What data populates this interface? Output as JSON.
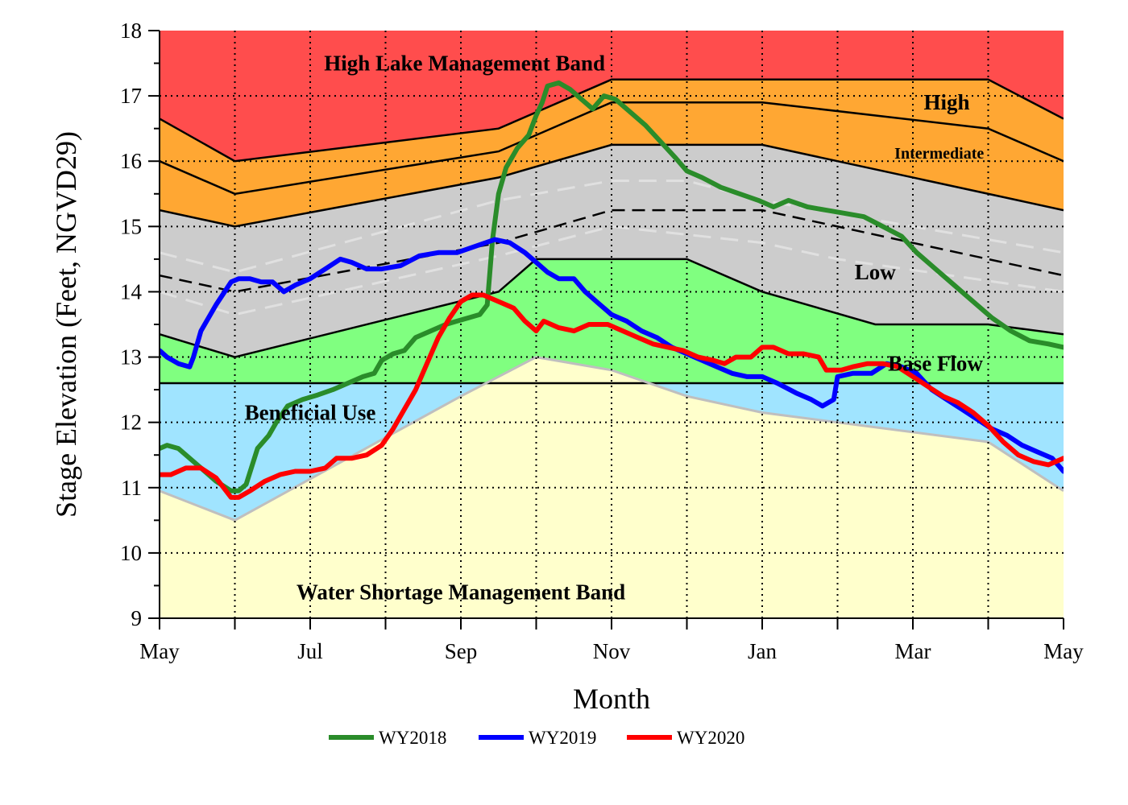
{
  "chart_data": {
    "type": "line",
    "title": "",
    "xlabel": "Month",
    "ylabel": "Stage Elevation (Feet, NGVD29)",
    "xlim": [
      0,
      12
    ],
    "ylim": [
      9,
      18
    ],
    "x_ticks": [
      0,
      1,
      2,
      3,
      4,
      5,
      6,
      7,
      8,
      9,
      10,
      11,
      12
    ],
    "x_tick_labels": [
      {
        "x": 0,
        "label": "May"
      },
      {
        "x": 2,
        "label": "Jul"
      },
      {
        "x": 4,
        "label": "Sep"
      },
      {
        "x": 6,
        "label": "Nov"
      },
      {
        "x": 8,
        "label": "Jan"
      },
      {
        "x": 10,
        "label": "Mar"
      },
      {
        "x": 12,
        "label": "May"
      }
    ],
    "y_ticks": [
      9,
      10,
      11,
      12,
      13,
      14,
      15,
      16,
      17,
      18
    ],
    "grid": true,
    "legend_position": "bottom",
    "band_boundaries": {
      "top": [
        [
          0,
          18
        ],
        [
          12,
          18
        ]
      ],
      "high_lake_lower": [
        [
          0,
          16.65
        ],
        [
          1,
          16.0
        ],
        [
          4.5,
          16.5
        ],
        [
          6,
          17.25
        ],
        [
          11,
          17.25
        ],
        [
          12,
          16.65
        ]
      ],
      "high_lower": [
        [
          0,
          16.0
        ],
        [
          1,
          15.5
        ],
        [
          4.5,
          16.15
        ],
        [
          6,
          16.9
        ],
        [
          8,
          16.9
        ],
        [
          11,
          16.5
        ],
        [
          12,
          16.0
        ]
      ],
      "intermediate_lower": [
        [
          0,
          15.25
        ],
        [
          1,
          15.0
        ],
        [
          4.5,
          15.75
        ],
        [
          6,
          16.25
        ],
        [
          8,
          16.25
        ],
        [
          12,
          15.25
        ]
      ],
      "low_lower": [
        [
          0,
          13.35
        ],
        [
          1,
          13.0
        ],
        [
          4.5,
          14.0
        ],
        [
          5,
          14.5
        ],
        [
          7,
          14.5
        ],
        [
          8,
          14.0
        ],
        [
          9.5,
          13.5
        ],
        [
          11,
          13.5
        ],
        [
          12,
          13.35
        ]
      ],
      "base_flow_lower": [
        [
          0,
          12.6
        ],
        [
          12,
          12.6
        ]
      ],
      "beneficial_use_lower": [
        [
          0,
          10.95
        ],
        [
          1,
          10.5
        ],
        [
          4,
          12.4
        ],
        [
          5,
          13.0
        ],
        [
          6,
          12.8
        ],
        [
          7,
          12.4
        ],
        [
          8,
          12.15
        ],
        [
          11,
          11.7
        ],
        [
          12,
          10.95
        ]
      ],
      "bottom": [
        [
          0,
          9
        ],
        [
          12,
          9
        ]
      ]
    },
    "bands": [
      {
        "label": "High Lake Management Band",
        "upper": "top",
        "lower": "high_lake_lower",
        "color": "#ff4d4d"
      },
      {
        "label": "High",
        "upper": "high_lake_lower",
        "lower": "high_lower",
        "color": "#ffa733"
      },
      {
        "label": "Intermediate",
        "upper": "high_lower",
        "lower": "intermediate_lower",
        "color": "#ffa733"
      },
      {
        "label": "Low",
        "upper": "intermediate_lower",
        "lower": "low_lower",
        "color": "#cccccc"
      },
      {
        "label": "Base Flow",
        "upper": "low_lower",
        "lower": "base_flow_lower",
        "color": "#80ff80"
      },
      {
        "label": "Beneficial Use",
        "upper": "base_flow_lower",
        "lower": "beneficial_use_lower",
        "color": "#a0e4ff"
      },
      {
        "label": "Water Shortage Management Band",
        "upper": "beneficial_use_lower",
        "lower": "bottom",
        "color": "#ffffcc"
      }
    ],
    "band_label_positions": [
      {
        "label": "High Lake Management Band",
        "x": 4.05,
        "y": 17.5,
        "size": "large"
      },
      {
        "label": "High",
        "x": 10.45,
        "y": 16.9,
        "size": "large"
      },
      {
        "label": "Intermediate",
        "x": 10.35,
        "y": 16.15,
        "size": "small"
      },
      {
        "label": "Low",
        "x": 9.5,
        "y": 14.3,
        "size": "large"
      },
      {
        "label": "Base Flow",
        "x": 10.3,
        "y": 12.9,
        "size": "large"
      },
      {
        "label": "Beneficial Use",
        "x": 2.0,
        "y": 12.15,
        "size": "large"
      },
      {
        "label": "Water Shortage Management Band",
        "x": 4.0,
        "y": 9.4,
        "size": "large"
      }
    ],
    "dashed_line": [
      [
        0,
        14.25
      ],
      [
        1,
        14.0
      ],
      [
        4.5,
        14.75
      ],
      [
        6,
        15.25
      ],
      [
        8,
        15.25
      ],
      [
        12,
        14.25
      ]
    ],
    "light_dashed_upper": [
      [
        0,
        14.6
      ],
      [
        1,
        14.3
      ],
      [
        4.5,
        15.4
      ],
      [
        6,
        15.7
      ],
      [
        7,
        15.7
      ],
      [
        8,
        15.4
      ],
      [
        12,
        14.6
      ]
    ],
    "light_dashed_lower": [
      [
        0,
        14.0
      ],
      [
        1,
        13.65
      ],
      [
        4.5,
        14.55
      ],
      [
        6,
        15.0
      ],
      [
        8,
        14.75
      ],
      [
        9,
        14.5
      ],
      [
        12,
        14.0
      ]
    ],
    "series": [
      {
        "name": "WY2018",
        "color": "#2a8c2a",
        "points": [
          [
            0,
            11.6
          ],
          [
            0.1,
            11.65
          ],
          [
            0.25,
            11.6
          ],
          [
            0.5,
            11.35
          ],
          [
            0.75,
            11.1
          ],
          [
            0.95,
            10.95
          ],
          [
            1.05,
            10.95
          ],
          [
            1.15,
            11.05
          ],
          [
            1.3,
            11.6
          ],
          [
            1.45,
            11.8
          ],
          [
            1.55,
            12.0
          ],
          [
            1.7,
            12.25
          ],
          [
            1.9,
            12.35
          ],
          [
            2.1,
            12.42
          ],
          [
            2.3,
            12.5
          ],
          [
            2.5,
            12.6
          ],
          [
            2.7,
            12.7
          ],
          [
            2.85,
            12.75
          ],
          [
            2.95,
            12.95
          ],
          [
            3.1,
            13.05
          ],
          [
            3.25,
            13.1
          ],
          [
            3.4,
            13.3
          ],
          [
            3.6,
            13.4
          ],
          [
            3.8,
            13.5
          ],
          [
            3.95,
            13.55
          ],
          [
            4.1,
            13.6
          ],
          [
            4.25,
            13.65
          ],
          [
            4.35,
            13.8
          ],
          [
            4.42,
            14.8
          ],
          [
            4.5,
            15.5
          ],
          [
            4.6,
            15.9
          ],
          [
            4.75,
            16.2
          ],
          [
            4.9,
            16.4
          ],
          [
            5.0,
            16.7
          ],
          [
            5.08,
            16.9
          ],
          [
            5.15,
            17.15
          ],
          [
            5.3,
            17.2
          ],
          [
            5.45,
            17.1
          ],
          [
            5.6,
            16.95
          ],
          [
            5.75,
            16.8
          ],
          [
            5.9,
            17.0
          ],
          [
            6.05,
            16.95
          ],
          [
            6.25,
            16.75
          ],
          [
            6.45,
            16.55
          ],
          [
            6.65,
            16.3
          ],
          [
            6.85,
            16.05
          ],
          [
            7.0,
            15.85
          ],
          [
            7.2,
            15.75
          ],
          [
            7.45,
            15.6
          ],
          [
            7.7,
            15.5
          ],
          [
            7.95,
            15.4
          ],
          [
            8.15,
            15.3
          ],
          [
            8.35,
            15.4
          ],
          [
            8.6,
            15.3
          ],
          [
            8.85,
            15.25
          ],
          [
            9.1,
            15.2
          ],
          [
            9.35,
            15.15
          ],
          [
            9.6,
            15.0
          ],
          [
            9.85,
            14.85
          ],
          [
            10.05,
            14.6
          ],
          [
            10.3,
            14.35
          ],
          [
            10.55,
            14.1
          ],
          [
            10.8,
            13.85
          ],
          [
            11.05,
            13.6
          ],
          [
            11.3,
            13.4
          ],
          [
            11.55,
            13.25
          ],
          [
            11.8,
            13.2
          ],
          [
            12.0,
            13.15
          ]
        ]
      },
      {
        "name": "WY2019",
        "color": "#0000ff",
        "points": [
          [
            0,
            13.1
          ],
          [
            0.1,
            13.0
          ],
          [
            0.25,
            12.9
          ],
          [
            0.4,
            12.85
          ],
          [
            0.45,
            13.0
          ],
          [
            0.55,
            13.4
          ],
          [
            0.75,
            13.8
          ],
          [
            0.95,
            14.15
          ],
          [
            1.05,
            14.2
          ],
          [
            1.2,
            14.2
          ],
          [
            1.35,
            14.15
          ],
          [
            1.5,
            14.15
          ],
          [
            1.65,
            14.0
          ],
          [
            1.8,
            14.1
          ],
          [
            2.0,
            14.2
          ],
          [
            2.2,
            14.35
          ],
          [
            2.4,
            14.5
          ],
          [
            2.55,
            14.45
          ],
          [
            2.75,
            14.35
          ],
          [
            2.95,
            14.35
          ],
          [
            3.2,
            14.4
          ],
          [
            3.45,
            14.55
          ],
          [
            3.7,
            14.6
          ],
          [
            3.95,
            14.6
          ],
          [
            4.2,
            14.7
          ],
          [
            4.45,
            14.8
          ],
          [
            4.65,
            14.75
          ],
          [
            4.85,
            14.6
          ],
          [
            5.0,
            14.45
          ],
          [
            5.15,
            14.3
          ],
          [
            5.3,
            14.2
          ],
          [
            5.5,
            14.2
          ],
          [
            5.65,
            14.0
          ],
          [
            5.85,
            13.8
          ],
          [
            6.0,
            13.65
          ],
          [
            6.2,
            13.55
          ],
          [
            6.4,
            13.4
          ],
          [
            6.6,
            13.3
          ],
          [
            6.8,
            13.15
          ],
          [
            7.0,
            13.05
          ],
          [
            7.2,
            12.95
          ],
          [
            7.4,
            12.85
          ],
          [
            7.6,
            12.75
          ],
          [
            7.8,
            12.7
          ],
          [
            8.0,
            12.7
          ],
          [
            8.2,
            12.6
          ],
          [
            8.45,
            12.45
          ],
          [
            8.65,
            12.35
          ],
          [
            8.8,
            12.25
          ],
          [
            8.95,
            12.35
          ],
          [
            9.0,
            12.7
          ],
          [
            9.2,
            12.75
          ],
          [
            9.45,
            12.75
          ],
          [
            9.65,
            12.9
          ],
          [
            9.85,
            12.85
          ],
          [
            10.05,
            12.75
          ],
          [
            10.25,
            12.5
          ],
          [
            10.45,
            12.35
          ],
          [
            10.65,
            12.2
          ],
          [
            10.85,
            12.05
          ],
          [
            11.05,
            11.9
          ],
          [
            11.25,
            11.8
          ],
          [
            11.45,
            11.65
          ],
          [
            11.65,
            11.55
          ],
          [
            11.85,
            11.45
          ],
          [
            12.0,
            11.25
          ]
        ]
      },
      {
        "name": "WY2020",
        "color": "#ff0000",
        "points": [
          [
            0,
            11.2
          ],
          [
            0.15,
            11.2
          ],
          [
            0.35,
            11.3
          ],
          [
            0.55,
            11.3
          ],
          [
            0.75,
            11.15
          ],
          [
            0.95,
            10.85
          ],
          [
            1.05,
            10.85
          ],
          [
            1.2,
            10.95
          ],
          [
            1.4,
            11.1
          ],
          [
            1.6,
            11.2
          ],
          [
            1.8,
            11.25
          ],
          [
            2.0,
            11.25
          ],
          [
            2.2,
            11.3
          ],
          [
            2.35,
            11.45
          ],
          [
            2.55,
            11.45
          ],
          [
            2.75,
            11.5
          ],
          [
            2.95,
            11.65
          ],
          [
            3.1,
            11.9
          ],
          [
            3.25,
            12.2
          ],
          [
            3.4,
            12.5
          ],
          [
            3.55,
            12.9
          ],
          [
            3.7,
            13.3
          ],
          [
            3.85,
            13.6
          ],
          [
            4.0,
            13.85
          ],
          [
            4.15,
            13.95
          ],
          [
            4.3,
            13.95
          ],
          [
            4.5,
            13.85
          ],
          [
            4.7,
            13.75
          ],
          [
            4.85,
            13.55
          ],
          [
            5.0,
            13.4
          ],
          [
            5.1,
            13.55
          ],
          [
            5.3,
            13.45
          ],
          [
            5.5,
            13.4
          ],
          [
            5.7,
            13.5
          ],
          [
            5.95,
            13.5
          ],
          [
            6.15,
            13.4
          ],
          [
            6.35,
            13.3
          ],
          [
            6.55,
            13.2
          ],
          [
            6.75,
            13.15
          ],
          [
            6.95,
            13.1
          ],
          [
            7.15,
            13.0
          ],
          [
            7.35,
            12.95
          ],
          [
            7.5,
            12.9
          ],
          [
            7.65,
            13.0
          ],
          [
            7.85,
            13.0
          ],
          [
            8.0,
            13.15
          ],
          [
            8.15,
            13.15
          ],
          [
            8.35,
            13.05
          ],
          [
            8.55,
            13.05
          ],
          [
            8.75,
            13.0
          ],
          [
            8.85,
            12.8
          ],
          [
            9.05,
            12.8
          ],
          [
            9.2,
            12.85
          ],
          [
            9.4,
            12.9
          ],
          [
            9.6,
            12.9
          ],
          [
            9.8,
            12.85
          ],
          [
            10.0,
            12.7
          ],
          [
            10.2,
            12.55
          ],
          [
            10.4,
            12.4
          ],
          [
            10.6,
            12.3
          ],
          [
            10.8,
            12.15
          ],
          [
            11.0,
            11.95
          ],
          [
            11.2,
            11.7
          ],
          [
            11.4,
            11.5
          ],
          [
            11.6,
            11.4
          ],
          [
            11.8,
            11.35
          ],
          [
            12.0,
            11.45
          ]
        ]
      }
    ]
  }
}
